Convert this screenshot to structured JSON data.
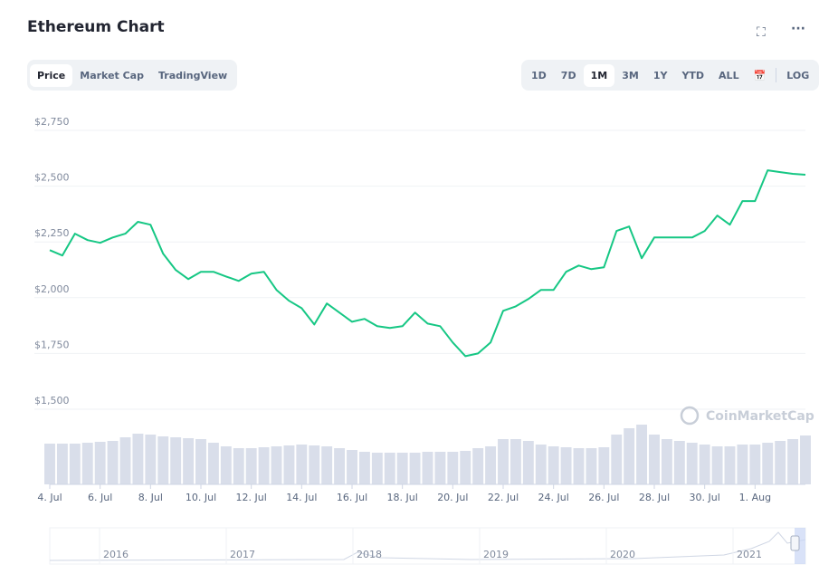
{
  "ui": {
    "tabs": [
      "Price",
      "Market Cap",
      "TradingView"
    ],
    "active_tab": 0,
    "ranges": [
      "1D",
      "7D",
      "1M",
      "3M",
      "1Y",
      "YTD",
      "ALL"
    ],
    "active_range": 2,
    "log_button": "LOG",
    "watermark": "CoinMarketCap",
    "navigator_labels": [
      "2016",
      "2017",
      "2018",
      "2019",
      "2020",
      "2021"
    ]
  },
  "chart_data": {
    "type": "line",
    "title": "Ethereum Chart",
    "categories": [
      "4. Jul",
      null,
      null,
      null,
      "6. Jul",
      null,
      null,
      null,
      "8. Jul",
      null,
      null,
      null,
      "10. Jul",
      null,
      null,
      null,
      "12. Jul",
      null,
      null,
      null,
      "14. Jul",
      null,
      null,
      null,
      "16. Jul",
      null,
      null,
      null,
      "18. Jul",
      null,
      null,
      null,
      "20. Jul",
      null,
      null,
      null,
      "22. Jul",
      null,
      null,
      null,
      "24. Jul",
      null,
      null,
      null,
      "26. Jul",
      null,
      null,
      null,
      "28. Jul",
      null,
      null,
      null,
      "30. Jul",
      null,
      null,
      null,
      "1. Aug",
      null,
      null,
      null,
      null
    ],
    "series": [
      {
        "name": "Price",
        "color": "#16c784",
        "values": [
          2213,
          2189,
          2287,
          2258,
          2246,
          2270,
          2287,
          2340,
          2327,
          2197,
          2124,
          2083,
          2116,
          2116,
          2095,
          2075,
          2108,
          2116,
          2035,
          1986,
          1953,
          1880,
          1974,
          1933,
          1892,
          1905,
          1872,
          1864,
          1872,
          1933,
          1884,
          1872,
          1799,
          1738,
          1750,
          1799,
          1941,
          1961,
          1994,
          2035,
          2035,
          2116,
          2144,
          2128,
          2136,
          2299,
          2319,
          2177,
          2270,
          2270,
          2270,
          2270,
          2299,
          2368,
          2327,
          2433,
          2433,
          2571,
          2563,
          2555,
          2551
        ]
      },
      {
        "name": "Volume",
        "color": "#d9deea",
        "axis": "y2",
        "values": [
          45,
          45,
          45,
          46,
          47,
          48,
          52,
          56,
          55,
          53,
          52,
          51,
          50,
          46,
          42,
          40,
          40,
          41,
          42,
          43,
          44,
          43,
          42,
          40,
          38,
          36,
          35,
          35,
          35,
          35,
          36,
          36,
          36,
          37,
          40,
          42,
          50,
          50,
          48,
          44,
          42,
          41,
          40,
          40,
          41,
          55,
          62,
          66,
          55,
          50,
          48,
          46,
          44,
          42,
          42,
          44,
          44,
          46,
          48,
          50,
          54
        ]
      }
    ],
    "ylim": [
      1500,
      2750
    ],
    "yticks": [
      {
        "value": 1500,
        "label": "$1,500"
      },
      {
        "value": 1750,
        "label": "$1,750"
      },
      {
        "value": 2000,
        "label": "$2,000"
      },
      {
        "value": 2250,
        "label": "$2,250"
      },
      {
        "value": 2500,
        "label": "$2,500"
      },
      {
        "value": 2750,
        "label": "$2,750"
      }
    ],
    "y2lim": [
      0,
      120
    ],
    "grid": true
  }
}
